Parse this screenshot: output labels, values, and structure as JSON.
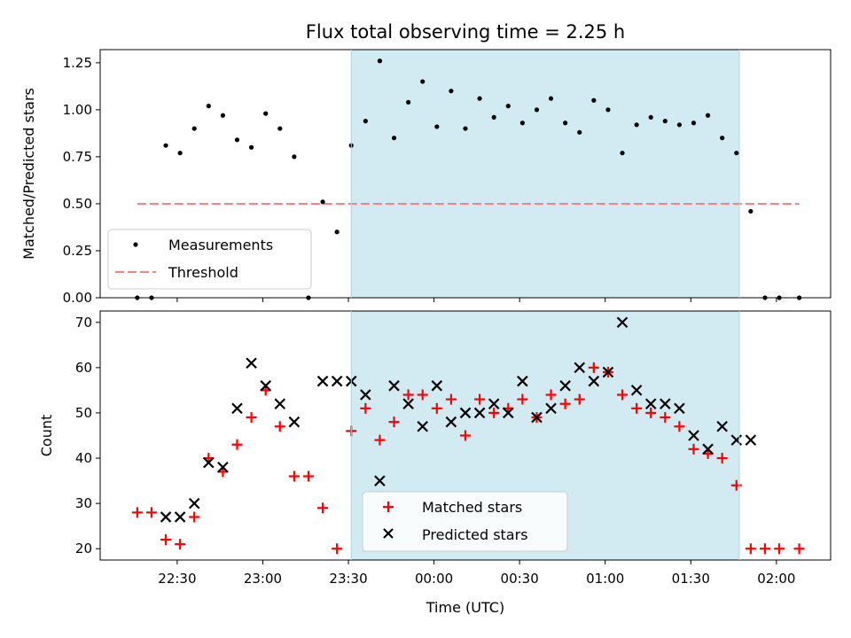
{
  "chart_data": [
    {
      "type": "scatter",
      "title": "Flux total observing time = 2.25 h",
      "xlabel": "",
      "ylabel": "Matched/Predicted stars",
      "ylim": [
        0,
        1.32
      ],
      "yticks": [
        0.0,
        0.25,
        0.5,
        0.75,
        1.0,
        1.25
      ],
      "ytick_labels": [
        "0.00",
        "0.25",
        "0.50",
        "0.75",
        "1.00",
        "1.25"
      ],
      "xticks": [
        "22:30",
        "23:00",
        "23:30",
        "00:00",
        "00:30",
        "01:00",
        "01:30",
        "02:00"
      ],
      "shaded_interval": [
        "23:31",
        "01:47"
      ],
      "shade_color": "#add8e6",
      "legend_position": "lower-left",
      "series": [
        {
          "name": "Measurements",
          "marker": "dot",
          "color": "#000000",
          "points": [
            [
              "22:16",
              0.0
            ],
            [
              "22:21",
              0.0
            ],
            [
              "22:26",
              0.81
            ],
            [
              "22:31",
              0.77
            ],
            [
              "22:36",
              0.9
            ],
            [
              "22:41",
              1.02
            ],
            [
              "22:46",
              0.97
            ],
            [
              "22:51",
              0.84
            ],
            [
              "22:56",
              0.8
            ],
            [
              "23:01",
              0.98
            ],
            [
              "23:06",
              0.9
            ],
            [
              "23:11",
              0.75
            ],
            [
              "23:16",
              0.0
            ],
            [
              "23:21",
              0.51
            ],
            [
              "23:26",
              0.35
            ],
            [
              "23:31",
              0.81
            ],
            [
              "23:36",
              0.94
            ],
            [
              "23:41",
              1.26
            ],
            [
              "23:46",
              0.85
            ],
            [
              "23:51",
              1.04
            ],
            [
              "23:56",
              1.15
            ],
            [
              "00:01",
              0.91
            ],
            [
              "00:06",
              1.1
            ],
            [
              "00:11",
              0.9
            ],
            [
              "00:16",
              1.06
            ],
            [
              "00:21",
              0.96
            ],
            [
              "00:26",
              1.02
            ],
            [
              "00:31",
              0.93
            ],
            [
              "00:36",
              1.0
            ],
            [
              "00:41",
              1.06
            ],
            [
              "00:46",
              0.93
            ],
            [
              "00:51",
              0.88
            ],
            [
              "00:56",
              1.05
            ],
            [
              "01:01",
              1.0
            ],
            [
              "01:06",
              0.77
            ],
            [
              "01:11",
              0.92
            ],
            [
              "01:16",
              0.96
            ],
            [
              "01:21",
              0.94
            ],
            [
              "01:26",
              0.92
            ],
            [
              "01:31",
              0.93
            ],
            [
              "01:36",
              0.97
            ],
            [
              "01:41",
              0.85
            ],
            [
              "01:46",
              0.77
            ],
            [
              "01:51",
              0.46
            ],
            [
              "01:56",
              0.0
            ],
            [
              "02:01",
              0.0
            ],
            [
              "02:08",
              0.0
            ]
          ]
        },
        {
          "name": "Threshold",
          "marker": "dashed-line",
          "color": "#ff7f7f",
          "points": [
            [
              "22:16",
              0.5
            ],
            [
              "02:08",
              0.5
            ]
          ]
        }
      ]
    },
    {
      "type": "scatter",
      "title": "",
      "xlabel": "Time (UTC)",
      "ylabel": "Count",
      "ylim": [
        17.5,
        72.5
      ],
      "yticks": [
        20,
        30,
        40,
        50,
        60,
        70
      ],
      "ytick_labels": [
        "20",
        "30",
        "40",
        "50",
        "60",
        "70"
      ],
      "xticks": [
        "22:30",
        "23:00",
        "23:30",
        "00:00",
        "00:30",
        "01:00",
        "01:30",
        "02:00"
      ],
      "shaded_interval": [
        "23:31",
        "01:47"
      ],
      "shade_color": "#add8e6",
      "legend_position": "lower-center",
      "series": [
        {
          "name": "Matched stars",
          "marker": "plus",
          "color": "#ff0000",
          "points": [
            [
              "22:16",
              28
            ],
            [
              "22:21",
              28
            ],
            [
              "22:26",
              22
            ],
            [
              "22:31",
              21
            ],
            [
              "22:36",
              27
            ],
            [
              "22:41",
              40
            ],
            [
              "22:46",
              37
            ],
            [
              "22:51",
              43
            ],
            [
              "22:56",
              49
            ],
            [
              "23:01",
              55
            ],
            [
              "23:06",
              47
            ],
            [
              "23:11",
              36
            ],
            [
              "23:16",
              36
            ],
            [
              "23:21",
              29
            ],
            [
              "23:26",
              20
            ],
            [
              "23:31",
              46
            ],
            [
              "23:36",
              51
            ],
            [
              "23:41",
              44
            ],
            [
              "23:46",
              48
            ],
            [
              "23:51",
              54
            ],
            [
              "23:56",
              54
            ],
            [
              "00:01",
              51
            ],
            [
              "00:06",
              53
            ],
            [
              "00:11",
              45
            ],
            [
              "00:16",
              53
            ],
            [
              "00:21",
              50
            ],
            [
              "00:26",
              51
            ],
            [
              "00:31",
              53
            ],
            [
              "00:36",
              49
            ],
            [
              "00:41",
              54
            ],
            [
              "00:46",
              52
            ],
            [
              "00:51",
              53
            ],
            [
              "00:56",
              60
            ],
            [
              "01:01",
              59
            ],
            [
              "01:06",
              54
            ],
            [
              "01:11",
              51
            ],
            [
              "01:16",
              50
            ],
            [
              "01:21",
              49
            ],
            [
              "01:26",
              47
            ],
            [
              "01:31",
              42
            ],
            [
              "01:36",
              41
            ],
            [
              "01:41",
              40
            ],
            [
              "01:46",
              34
            ],
            [
              "01:51",
              20
            ],
            [
              "01:56",
              20
            ],
            [
              "02:01",
              20
            ],
            [
              "02:08",
              20
            ]
          ]
        },
        {
          "name": "Predicted stars",
          "marker": "x",
          "color": "#000000",
          "points": [
            [
              "22:26",
              27
            ],
            [
              "22:31",
              27
            ],
            [
              "22:36",
              30
            ],
            [
              "22:41",
              39
            ],
            [
              "22:46",
              38
            ],
            [
              "22:51",
              51
            ],
            [
              "22:56",
              61
            ],
            [
              "23:01",
              56
            ],
            [
              "23:06",
              52
            ],
            [
              "23:11",
              48
            ],
            [
              "23:21",
              57
            ],
            [
              "23:26",
              57
            ],
            [
              "23:31",
              57
            ],
            [
              "23:36",
              54
            ],
            [
              "23:41",
              35
            ],
            [
              "23:46",
              56
            ],
            [
              "23:51",
              52
            ],
            [
              "23:56",
              47
            ],
            [
              "00:01",
              56
            ],
            [
              "00:06",
              48
            ],
            [
              "00:11",
              50
            ],
            [
              "00:16",
              50
            ],
            [
              "00:21",
              52
            ],
            [
              "00:26",
              50
            ],
            [
              "00:31",
              57
            ],
            [
              "00:36",
              49
            ],
            [
              "00:41",
              51
            ],
            [
              "00:46",
              56
            ],
            [
              "00:51",
              60
            ],
            [
              "00:56",
              57
            ],
            [
              "01:01",
              59
            ],
            [
              "01:06",
              70
            ],
            [
              "01:11",
              55
            ],
            [
              "01:16",
              52
            ],
            [
              "01:21",
              52
            ],
            [
              "01:26",
              51
            ],
            [
              "01:31",
              45
            ],
            [
              "01:36",
              42
            ],
            [
              "01:41",
              47
            ],
            [
              "01:46",
              44
            ],
            [
              "01:51",
              44
            ]
          ]
        }
      ]
    }
  ]
}
